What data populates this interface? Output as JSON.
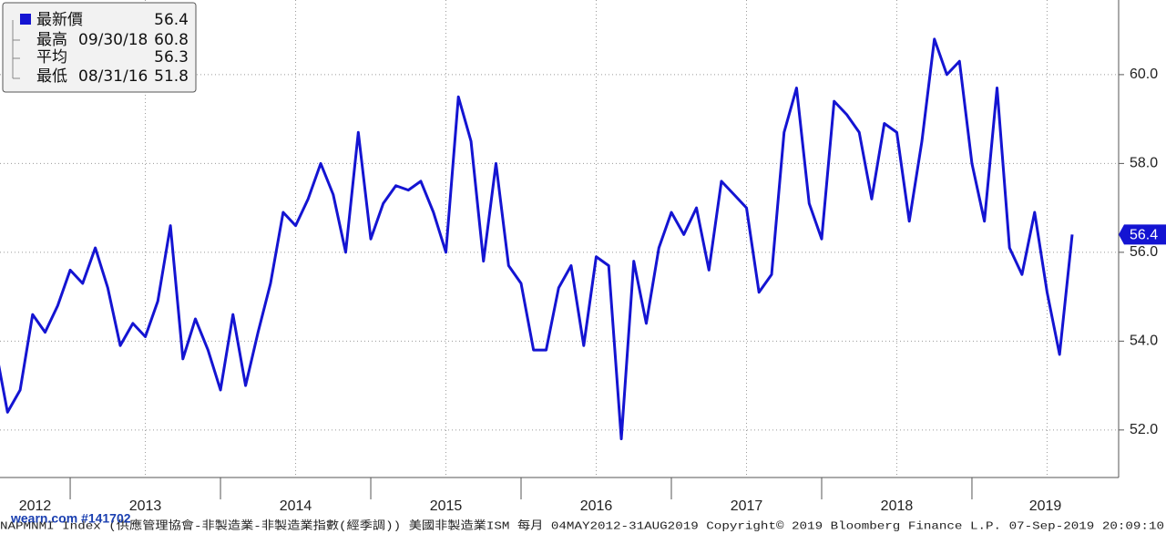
{
  "chart_data": {
    "type": "line",
    "series": [
      {
        "name": "NAPMNMI Index",
        "color": "#1414d2",
        "x": [
          2012.5,
          2012.583,
          2012.667,
          2012.75,
          2012.833,
          2012.917,
          2013.0,
          2013.083,
          2013.167,
          2013.25,
          2013.333,
          2013.417,
          2013.5,
          2013.583,
          2013.667,
          2013.75,
          2013.833,
          2013.917,
          2014.0,
          2014.083,
          2014.167,
          2014.25,
          2014.333,
          2014.417,
          2014.5,
          2014.583,
          2014.667,
          2014.75,
          2014.833,
          2014.917,
          2015.0,
          2015.083,
          2015.167,
          2015.25,
          2015.333,
          2015.417,
          2015.5,
          2015.583,
          2015.667,
          2015.75,
          2015.833,
          2015.917,
          2016.0,
          2016.083,
          2016.167,
          2016.25,
          2016.333,
          2016.417,
          2016.5,
          2016.583,
          2016.667,
          2016.75,
          2016.833,
          2016.917,
          2017.0,
          2017.083,
          2017.167,
          2017.25,
          2017.333,
          2017.417,
          2017.5,
          2017.583,
          2017.667,
          2017.75,
          2017.833,
          2017.917,
          2018.0,
          2018.083,
          2018.167,
          2018.25,
          2018.333,
          2018.417,
          2018.5,
          2018.583,
          2018.667,
          2018.75,
          2018.833,
          2018.917,
          2019.0,
          2019.083,
          2019.167,
          2019.25,
          2019.333,
          2019.417,
          2019.5,
          2019.583,
          2019.667
        ],
        "values": [
          53.9,
          52.4,
          52.9,
          54.6,
          54.2,
          54.8,
          55.6,
          55.3,
          56.1,
          55.2,
          53.9,
          54.4,
          54.1,
          54.9,
          56.6,
          53.6,
          54.5,
          53.8,
          52.9,
          54.6,
          53.0,
          54.2,
          55.3,
          56.9,
          56.6,
          57.2,
          58.0,
          57.3,
          56.0,
          58.7,
          56.3,
          57.1,
          57.5,
          57.4,
          57.6,
          56.9,
          56.0,
          59.5,
          58.5,
          55.8,
          58.0,
          55.7,
          55.3,
          53.8,
          53.8,
          55.2,
          55.7,
          53.9,
          55.9,
          55.7,
          51.8,
          55.8,
          54.4,
          56.1,
          56.9,
          56.4,
          57.0,
          55.6,
          57.6,
          57.3,
          57.0,
          55.1,
          55.5,
          58.7,
          59.7,
          57.1,
          56.3,
          59.4,
          59.1,
          58.7,
          57.2,
          58.9,
          58.7,
          56.7,
          58.5,
          60.8,
          60.0,
          60.3,
          58.0,
          56.7,
          59.7,
          56.1,
          55.5,
          56.9,
          55.1,
          53.7,
          56.4
        ]
      }
    ],
    "xlim": [
      2012.533,
      2019.976
    ],
    "year_labels": [
      2012,
      2013,
      2014,
      2015,
      2016,
      2017,
      2018,
      2019
    ],
    "ylim": [
      50.93,
      61.68
    ],
    "yticks": [
      {
        "value": 52,
        "label": "52.0"
      },
      {
        "value": 54,
        "label": "54.0"
      },
      {
        "value": 56,
        "label": "56.0"
      },
      {
        "value": 58,
        "label": "58.0"
      },
      {
        "value": 60,
        "label": "60.0"
      }
    ],
    "grid": true,
    "stats": [
      {
        "label": "最新價",
        "value": 56.4
      },
      {
        "label": "最高",
        "date": "09/30/18",
        "value": 60.8
      },
      {
        "label": "平均",
        "value": 56.3
      },
      {
        "label": "最低",
        "date": "08/31/16",
        "value": 51.8
      }
    ],
    "footer": "NAPMNMI Index (供應管理協會-非製造業-非製造業指數(經季調)) 美國非製造業ISM  每月 04MAY2012-31AUG2019 Copyright© 2019 Bloomberg Finance L.P. 07-Sep-2019 20:09:10",
    "watermark": "wearn.com #141702"
  }
}
